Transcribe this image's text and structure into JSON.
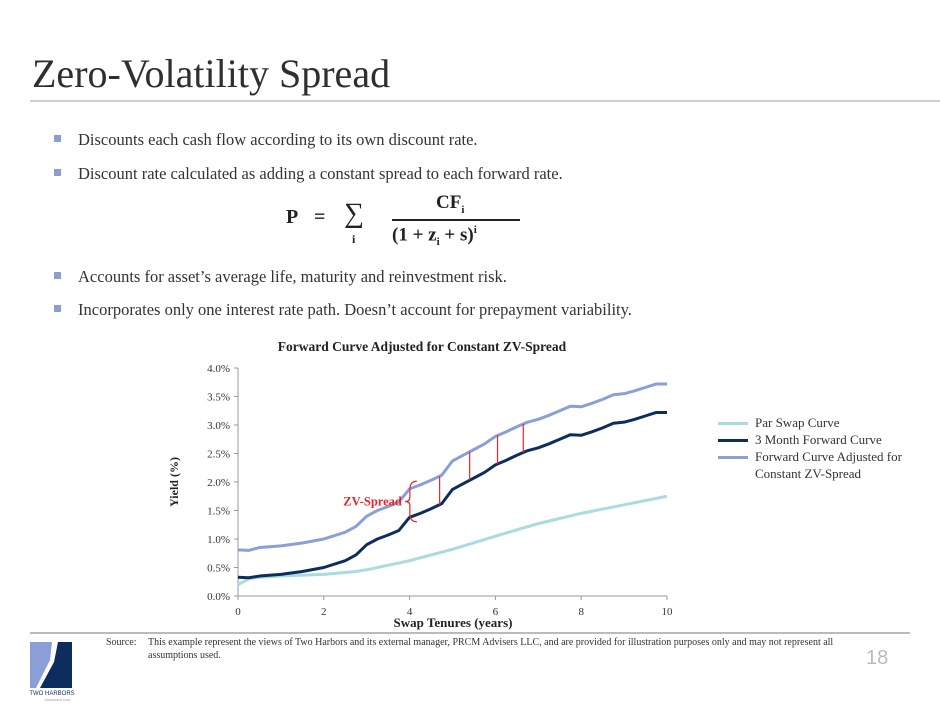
{
  "title": "Zero-Volatility Spread",
  "bullets": [
    "Discounts each cash flow according to its own discount rate.",
    "Discount rate calculated as adding a constant spread to each forward rate.",
    "Accounts for asset’s average life, maturity and reinvestment risk.",
    "Incorporates only one interest rate path. Doesn’t account for prepayment variability."
  ],
  "formula": {
    "lhs": "P",
    "eq": "=",
    "sum": "∑",
    "sum_index": "i",
    "numerator": "CF",
    "num_sub": "i",
    "denominator": "(1 + z",
    "den_sub": "i",
    "den_rest": "+ s)",
    "exponent": "i"
  },
  "chart_data": {
    "type": "line",
    "title": "Forward Curve Adjusted for Constant ZV-Spread",
    "xlabel": "Swap Tenures (years)",
    "ylabel": "Yield (%)",
    "xlim": [
      0,
      10
    ],
    "ylim": [
      0,
      4.0
    ],
    "xticks": [
      "0",
      "2",
      "4",
      "6",
      "8",
      "10"
    ],
    "yticks": [
      "0.0%",
      "0.5%",
      "1.0%",
      "1.5%",
      "2.0%",
      "2.5%",
      "3.0%",
      "3.5%",
      "4.0%"
    ],
    "legend_position": "right",
    "annotation": {
      "text": "ZV-Spread",
      "color": "#e8262a",
      "spread_markers_x": [
        4.7,
        5.4,
        6.05,
        6.65
      ],
      "brace_x": 4.1
    },
    "series": [
      {
        "name": "Par Swap Curve",
        "color": "#a9dbe0",
        "x": [
          0,
          0.25,
          0.5,
          1,
          2,
          2.75,
          3,
          4,
          5,
          6,
          7,
          8,
          9,
          10
        ],
        "values": [
          0.2,
          0.3,
          0.33,
          0.35,
          0.38,
          0.43,
          0.46,
          0.62,
          0.82,
          1.05,
          1.27,
          1.45,
          1.6,
          1.75
        ]
      },
      {
        "name": "3 Month Forward Curve",
        "color": "#0d2d5e",
        "x": [
          0,
          0.25,
          0.5,
          1,
          1.5,
          2,
          2.5,
          2.75,
          3,
          3.25,
          3.5,
          3.75,
          4,
          4.25,
          4.5,
          4.75,
          5,
          5.25,
          5.5,
          5.75,
          6,
          6.25,
          6.5,
          6.75,
          7,
          7.25,
          7.5,
          7.75,
          8,
          8.25,
          8.5,
          8.75,
          9,
          9.25,
          9.5,
          9.75,
          10
        ],
        "values": [
          0.33,
          0.32,
          0.35,
          0.38,
          0.43,
          0.5,
          0.62,
          0.72,
          0.9,
          1.0,
          1.07,
          1.15,
          1.38,
          1.45,
          1.53,
          1.62,
          1.87,
          1.97,
          2.07,
          2.17,
          2.3,
          2.38,
          2.47,
          2.55,
          2.6,
          2.67,
          2.75,
          2.83,
          2.82,
          2.88,
          2.95,
          3.03,
          3.05,
          3.1,
          3.16,
          3.22,
          3.22
        ]
      },
      {
        "name": "Forward Curve Adjusted for Constant ZV-Spread",
        "color": "#8a9fd8",
        "x": [
          0,
          0.25,
          0.5,
          1,
          1.5,
          2,
          2.5,
          2.75,
          3,
          3.25,
          3.5,
          3.75,
          4,
          4.25,
          4.5,
          4.75,
          5,
          5.25,
          5.5,
          5.75,
          6,
          6.25,
          6.5,
          6.75,
          7,
          7.25,
          7.5,
          7.75,
          8,
          8.25,
          8.5,
          8.75,
          9,
          9.25,
          9.5,
          9.75,
          10
        ],
        "values": [
          0.81,
          0.8,
          0.85,
          0.88,
          0.93,
          1.0,
          1.12,
          1.22,
          1.4,
          1.5,
          1.57,
          1.65,
          1.88,
          1.95,
          2.03,
          2.12,
          2.37,
          2.47,
          2.57,
          2.67,
          2.8,
          2.88,
          2.97,
          3.05,
          3.1,
          3.17,
          3.25,
          3.33,
          3.32,
          3.38,
          3.45,
          3.53,
          3.55,
          3.6,
          3.66,
          3.72,
          3.72
        ]
      }
    ]
  },
  "legend_labels": [
    "Par Swap Curve",
    "3 Month Forward Curve",
    "Forward Curve Adjusted for",
    "Constant ZV-Spread"
  ],
  "source": {
    "label": "Source:",
    "text": "This example represent the views of Two Harbors and its external manager, PRCM Advisers LLC, and are provided for illustration purposes only and may not represent all assumptions used."
  },
  "logo_text": "TWO HARBORS",
  "logo_subtext": "Investment Corp.",
  "page_number": "18"
}
